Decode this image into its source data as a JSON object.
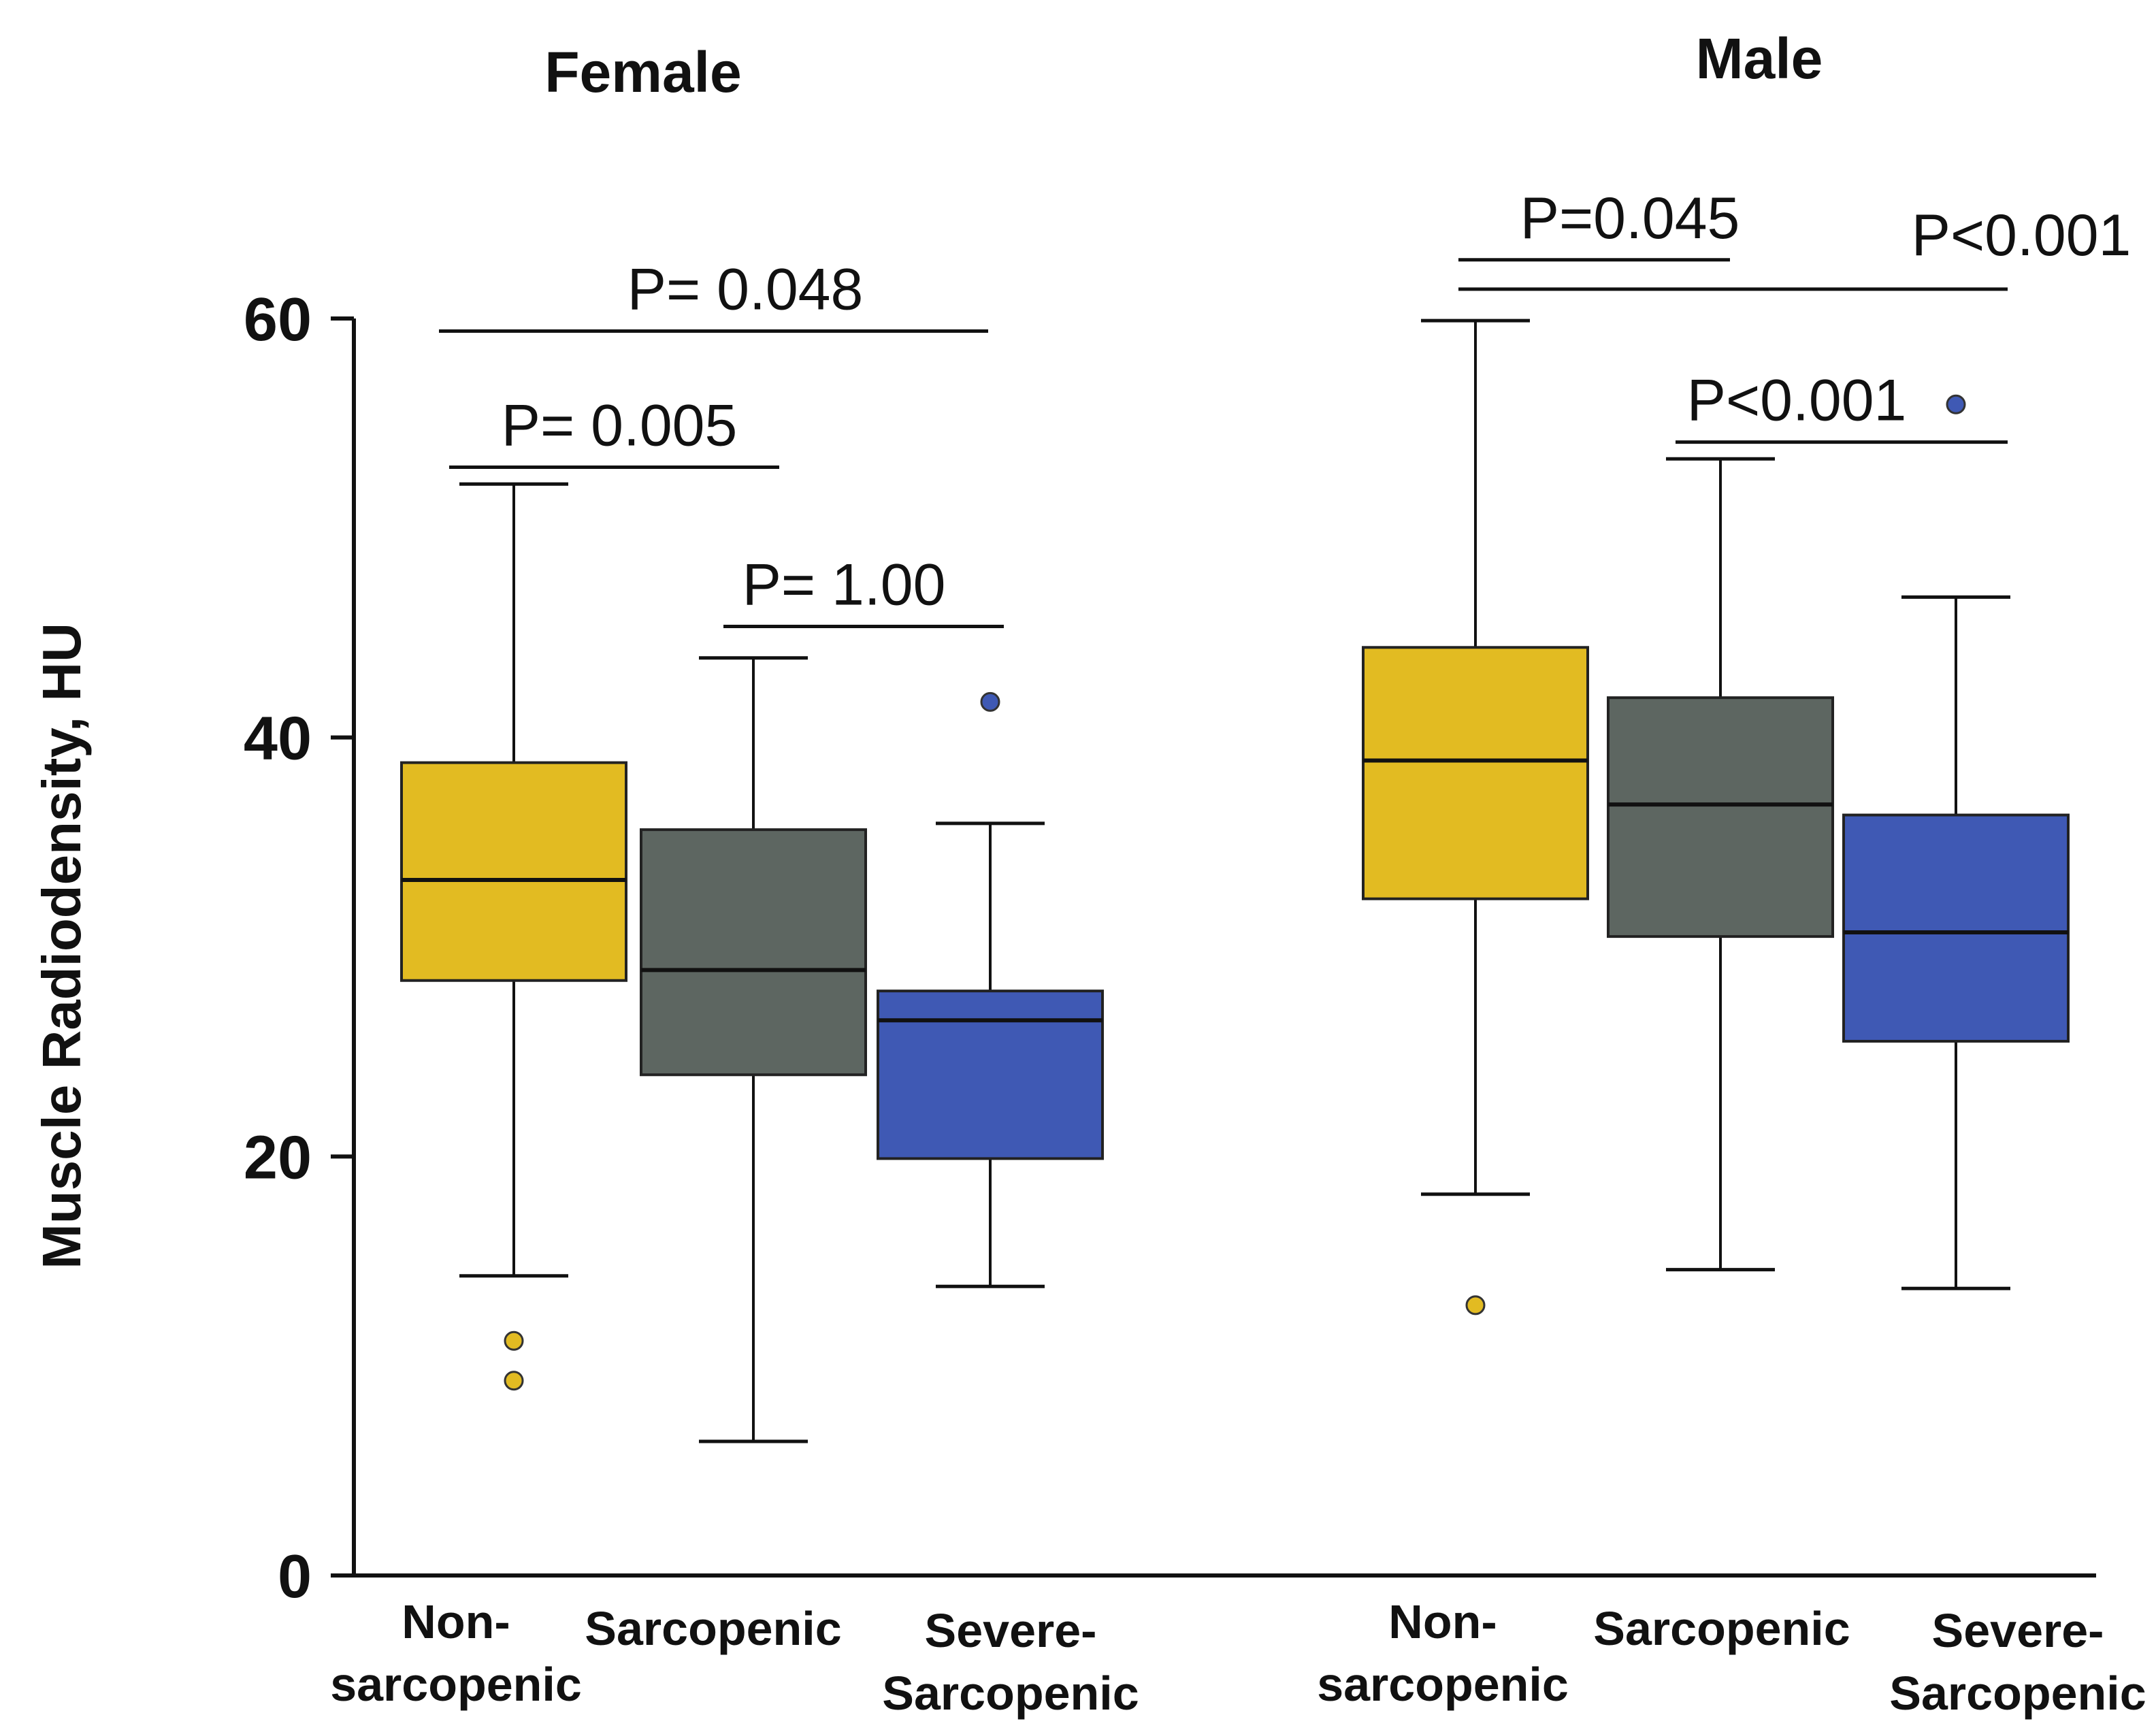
{
  "chart_data": {
    "type": "boxplot",
    "ylabel": "Muscle Radiodensity, HU",
    "ylim": [
      0,
      60
    ],
    "yticks": [
      0,
      20,
      40,
      60
    ],
    "colors": {
      "Non-sarcopenic": "#e2bb22",
      "Sarcopenic": "#5d6661",
      "Severe-Sarcopenic": "#3f59b4",
      "outlier_yellow": "#e2bb22",
      "outlier_blue": "#3f59b4"
    },
    "groups": [
      {
        "title": "Female",
        "boxes": [
          {
            "label_lines": [
              "Non-",
              "sarcopenic"
            ],
            "category": "Non-sarcopenic",
            "whisker_low": 14.3,
            "q1": 28.4,
            "median": 33.2,
            "q3": 38.8,
            "whisker_high": 52.1,
            "outliers": [
              11.2,
              9.3
            ]
          },
          {
            "label_lines": [
              "Sarcopenic"
            ],
            "category": "Sarcopenic",
            "whisker_low": 6.4,
            "q1": 23.9,
            "median": 28.9,
            "q3": 35.6,
            "whisker_high": 43.8,
            "outliers": []
          },
          {
            "label_lines": [
              "Severe-",
              "Sarcopenic"
            ],
            "category": "Severe-Sarcopenic",
            "whisker_low": 13.8,
            "q1": 19.9,
            "median": 26.5,
            "q3": 27.9,
            "whisker_high": 35.9,
            "outliers": [
              41.7
            ]
          }
        ],
        "comparisons": [
          {
            "label": "P= 0.048",
            "y": 59.4,
            "from": 0,
            "to": 2
          },
          {
            "label": "P= 0.005",
            "y": 52.9,
            "from": 0,
            "to": 1
          },
          {
            "label": "P= 1.00",
            "y": 45.3,
            "from": 1,
            "to": 2
          }
        ]
      },
      {
        "title": "Male",
        "boxes": [
          {
            "label_lines": [
              "Non-",
              "sarcopenic"
            ],
            "category": "Non-sarcopenic",
            "whisker_low": 18.2,
            "q1": 32.3,
            "median": 38.9,
            "q3": 44.3,
            "whisker_high": 59.9,
            "outliers": [
              12.9
            ]
          },
          {
            "label_lines": [
              "Sarcopenic"
            ],
            "category": "Sarcopenic",
            "whisker_low": 14.6,
            "q1": 30.5,
            "median": 36.8,
            "q3": 41.9,
            "whisker_high": 53.3,
            "outliers": []
          },
          {
            "label_lines": [
              "Severe-",
              "Sarcopenic"
            ],
            "category": "Severe-Sarcopenic",
            "whisker_low": 13.7,
            "q1": 25.5,
            "median": 30.7,
            "q3": 36.3,
            "whisker_high": 46.7,
            "outliers": [
              55.9
            ]
          }
        ],
        "comparisons": [
          {
            "label": "P=0.045",
            "y": 62.8,
            "from": 0,
            "to": 1
          },
          {
            "label": "P<0.001",
            "y": 61.4,
            "from": 0,
            "to": 2
          },
          {
            "label": "P<0.001",
            "y": 54.1,
            "from": 1,
            "to": 2
          }
        ]
      }
    ]
  }
}
